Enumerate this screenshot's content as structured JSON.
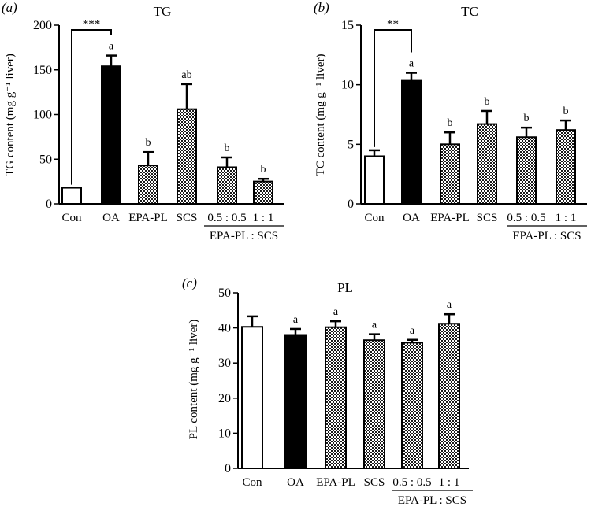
{
  "chart_data": [
    {
      "panel": "(a)",
      "type": "bar",
      "title": "TG",
      "ylabel": "TG content (mg g⁻¹ liver)",
      "ylim": [
        0,
        200
      ],
      "yticks": [
        0,
        50,
        100,
        150,
        200
      ],
      "categories": [
        "Con",
        "OA",
        "EPA-PL",
        "SCS",
        "0.5 : 0.5",
        "1 : 1"
      ],
      "group_label": "EPA-PL : SCS",
      "values": [
        18,
        154,
        43,
        106,
        41,
        25
      ],
      "errors": [
        0,
        12,
        15,
        28,
        11,
        3
      ],
      "letters": [
        "",
        "a",
        "b",
        "ab",
        "b",
        "b"
      ],
      "fills": [
        "white",
        "black",
        "pattern",
        "pattern",
        "pattern",
        "pattern"
      ],
      "bracket": {
        "from": 0,
        "to": 1,
        "label": "***"
      }
    },
    {
      "panel": "(b)",
      "type": "bar",
      "title": "TC",
      "ylabel": "TC content (mg g⁻¹ liver)",
      "ylim": [
        0,
        15
      ],
      "yticks": [
        0,
        5,
        10,
        15
      ],
      "categories": [
        "Con",
        "OA",
        "EPA-PL",
        "SCS",
        "0.5 : 0.5",
        "1 : 1"
      ],
      "group_label": "EPA-PL : SCS",
      "values": [
        4.0,
        10.4,
        5.0,
        6.7,
        5.6,
        6.2
      ],
      "errors": [
        0.5,
        0.6,
        1.0,
        1.1,
        0.8,
        0.8
      ],
      "letters": [
        "",
        "a",
        "b",
        "b",
        "b",
        "b"
      ],
      "fills": [
        "white",
        "black",
        "pattern",
        "pattern",
        "pattern",
        "pattern"
      ],
      "bracket": {
        "from": 0,
        "to": 1,
        "label": "**"
      }
    },
    {
      "panel": "(c)",
      "type": "bar",
      "title": "PL",
      "ylabel": "PL content (mg g⁻¹ liver)",
      "ylim": [
        0,
        50
      ],
      "yticks": [
        0,
        10,
        20,
        30,
        40,
        50
      ],
      "categories": [
        "Con",
        "OA",
        "EPA-PL",
        "SCS",
        "0.5 : 0.5",
        "1 : 1"
      ],
      "group_label": "EPA-PL : SCS",
      "values": [
        40.3,
        38.0,
        40.2,
        36.5,
        35.8,
        41.2
      ],
      "errors": [
        3.0,
        1.7,
        1.7,
        1.7,
        0.8,
        2.7
      ],
      "letters": [
        "",
        "a",
        "a",
        "a",
        "a",
        "a"
      ],
      "fills": [
        "white",
        "black",
        "pattern",
        "pattern",
        "pattern",
        "pattern"
      ],
      "bracket": null
    }
  ]
}
